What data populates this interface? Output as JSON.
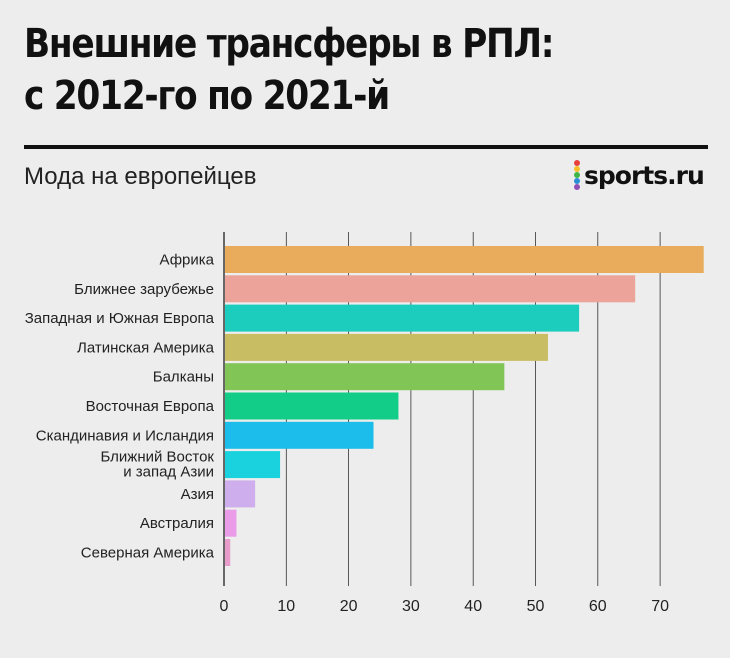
{
  "header": {
    "title_line1": "Внешние трансферы в РПЛ:",
    "title_line2": "с 2012-го по 2021-й",
    "subtitle": "Мода на европейцев"
  },
  "logo": {
    "text": "sports.ru",
    "dot_colors": [
      "#e8403c",
      "#f5c02a",
      "#3db54a",
      "#2b8fd8",
      "#8e4fb6"
    ]
  },
  "chart_data": {
    "type": "bar",
    "orientation": "horizontal",
    "title": "Внешние трансферы в РПЛ: с 2012-го по 2021-й",
    "subtitle": "Мода на европейцев",
    "xlabel": "",
    "ylabel": "",
    "xlim": [
      0,
      77
    ],
    "xticks": [
      0,
      10,
      20,
      30,
      40,
      50,
      60,
      70
    ],
    "grid": "vertical",
    "categories": [
      [
        "Африка"
      ],
      [
        "Ближнее зарубежье"
      ],
      [
        "Западная и Южная Европа"
      ],
      [
        "Латинская Америка"
      ],
      [
        "Балканы"
      ],
      [
        "Восточная Европа"
      ],
      [
        "Скандинавия и Исландия"
      ],
      [
        "Ближний Восток",
        "и запад Азии"
      ],
      [
        "Азия"
      ],
      [
        "Австралия"
      ],
      [
        "Северная Америка"
      ]
    ],
    "values": [
      77,
      66,
      57,
      52,
      45,
      28,
      24,
      9,
      5,
      2,
      1
    ],
    "colors": [
      "#e8ac5c",
      "#eca49a",
      "#1ccdbd",
      "#c9bd64",
      "#80c555",
      "#11cd87",
      "#1cbdea",
      "#1ad1de",
      "#ceaeec",
      "#ea9ce8",
      "#e89ccc"
    ]
  }
}
